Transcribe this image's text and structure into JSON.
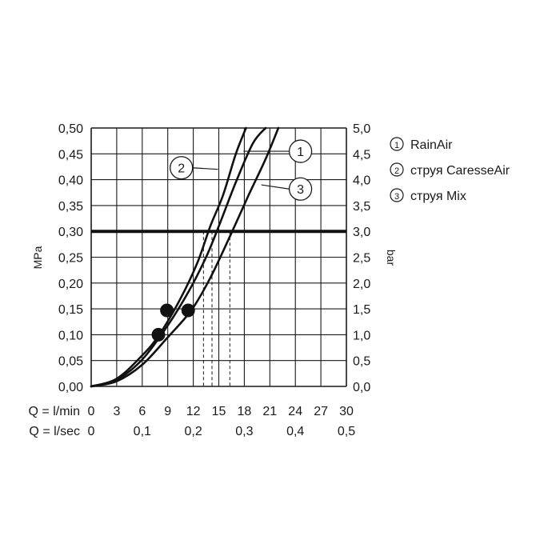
{
  "chart_data": {
    "type": "line",
    "x_axis": {
      "quantity": "flow rate",
      "unit_label": "Q = l/min",
      "range": [
        0,
        30
      ],
      "ticks": [
        "0",
        "3",
        "6",
        "9",
        "12",
        "15",
        "18",
        "21",
        "24",
        "27",
        "30"
      ],
      "secondary_label": "Q = l/sec",
      "secondary_ticks": [
        "0",
        "0,1",
        "0,2",
        "0,3",
        "0,4",
        "0,5"
      ]
    },
    "y_axis_left": {
      "label": "MPa",
      "range": [
        0,
        0.5
      ],
      "ticks": [
        "0,00",
        "0,05",
        "0,10",
        "0,15",
        "0,20",
        "0,25",
        "0,30",
        "0,35",
        "0,40",
        "0,45",
        "0,50"
      ]
    },
    "y_axis_right": {
      "label": "bar",
      "range": [
        0,
        5
      ],
      "ticks": [
        "0,0",
        "0,5",
        "1,0",
        "1,5",
        "2,0",
        "2,5",
        "3,0",
        "3,5",
        "4,0",
        "4,5",
        "5,0"
      ]
    },
    "grid": true,
    "reference_line": {
      "y": 0.3
    },
    "series": [
      {
        "id": "1",
        "name": "RainAir",
        "x": [
          0,
          3,
          6,
          9,
          11.5,
          13.5,
          15,
          17,
          19,
          20.5
        ],
        "y": [
          0,
          0.013,
          0.052,
          0.118,
          0.185,
          0.25,
          0.31,
          0.395,
          0.47,
          0.5
        ],
        "marker": {
          "x": 8.9,
          "y": 0.147
        },
        "projection_x": 14.2
      },
      {
        "id": "2",
        "name": "струя CaresseAir",
        "x": [
          0,
          3,
          6,
          8,
          10.5,
          12.5,
          14,
          15.5,
          17,
          18.2
        ],
        "y": [
          0,
          0.015,
          0.06,
          0.1,
          0.17,
          0.24,
          0.31,
          0.37,
          0.45,
          0.5
        ],
        "marker": {
          "x": 7.9,
          "y": 0.1
        },
        "projection_x": 13.2
      },
      {
        "id": "3",
        "name": "струя Mix",
        "x": [
          0,
          3,
          6,
          9,
          11.8,
          14,
          16.3,
          18.5,
          20.5,
          22
        ],
        "y": [
          0,
          0.01,
          0.042,
          0.095,
          0.148,
          0.21,
          0.29,
          0.37,
          0.44,
          0.5
        ],
        "marker": {
          "x": 11.4,
          "y": 0.147
        },
        "projection_x": 16.3
      }
    ],
    "callouts": [
      {
        "series": "2",
        "label": "2",
        "circle_at": [
          10.6,
          0.423
        ],
        "leader_to": [
          14.9,
          0.42
        ]
      },
      {
        "series": "1",
        "label": "1",
        "circle_at": [
          24.6,
          0.455
        ],
        "leader_to": [
          17.9,
          0.455
        ]
      },
      {
        "series": "3",
        "label": "3",
        "circle_at": [
          24.6,
          0.382
        ],
        "leader_to": [
          20.0,
          0.39
        ]
      }
    ]
  },
  "legend": {
    "items": [
      {
        "num": "1",
        "label": "RainAir"
      },
      {
        "num": "2",
        "label": "струя CaresseAir"
      },
      {
        "num": "3",
        "label": "струя Mix"
      }
    ]
  }
}
